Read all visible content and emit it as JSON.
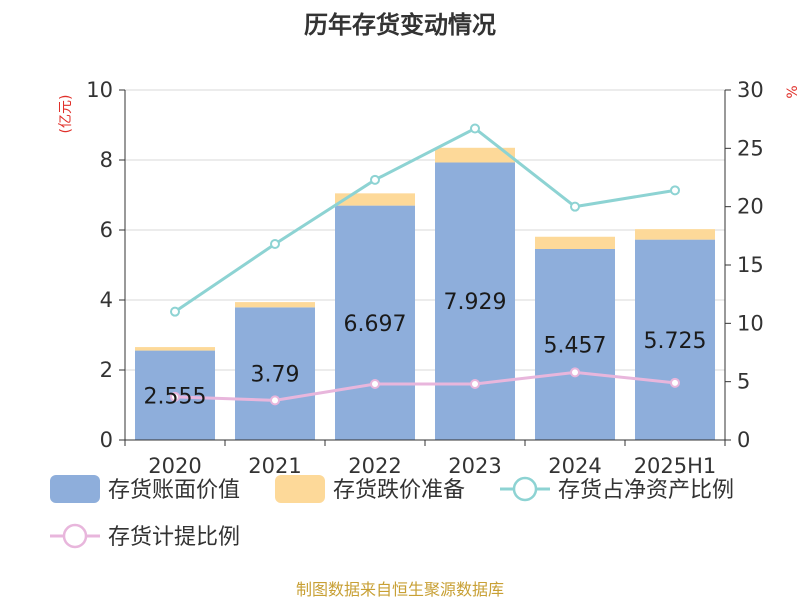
{
  "chart_data": {
    "type": "bar",
    "title": "历年存货变动情况",
    "categories": [
      "2020",
      "2021",
      "2022",
      "2023",
      "2024",
      "2025H1"
    ],
    "y_left": {
      "unit_label": "(亿元)",
      "ylim": [
        0,
        10
      ],
      "ticks": [
        "0",
        "2",
        "4",
        "6",
        "8",
        "10"
      ]
    },
    "y_right": {
      "unit_label": "%",
      "ylim": [
        0,
        30
      ],
      "ticks": [
        "0",
        "5",
        "10",
        "15",
        "20",
        "25",
        "30"
      ]
    },
    "series": [
      {
        "name": "存货账面价值",
        "type": "bar",
        "stack": "inv",
        "axis": "left",
        "color": "#8eaedb",
        "values": [
          2.555,
          3.79,
          6.697,
          7.929,
          5.457,
          5.725
        ],
        "labels": [
          "2.555",
          "3.79",
          "6.697",
          "7.929",
          "5.457",
          "5.725"
        ]
      },
      {
        "name": "存货跌价准备",
        "type": "bar",
        "stack": "inv",
        "axis": "left",
        "color": "#fdd999",
        "values": [
          0.1,
          0.15,
          0.35,
          0.42,
          0.35,
          0.3
        ]
      },
      {
        "name": "存货占净资产比例",
        "type": "line",
        "axis": "right",
        "color": "#8dd3d3",
        "values": [
          11.0,
          16.8,
          22.3,
          26.7,
          20.0,
          21.4
        ]
      },
      {
        "name": "存货计提比例",
        "type": "line",
        "axis": "right",
        "color": "#e8b6dc",
        "values": [
          3.7,
          3.4,
          4.8,
          4.8,
          5.8,
          4.9
        ]
      }
    ],
    "grid": true,
    "legend_position": "bottom"
  },
  "footer": {
    "source": "制图数据来自恒生聚源数据库"
  }
}
